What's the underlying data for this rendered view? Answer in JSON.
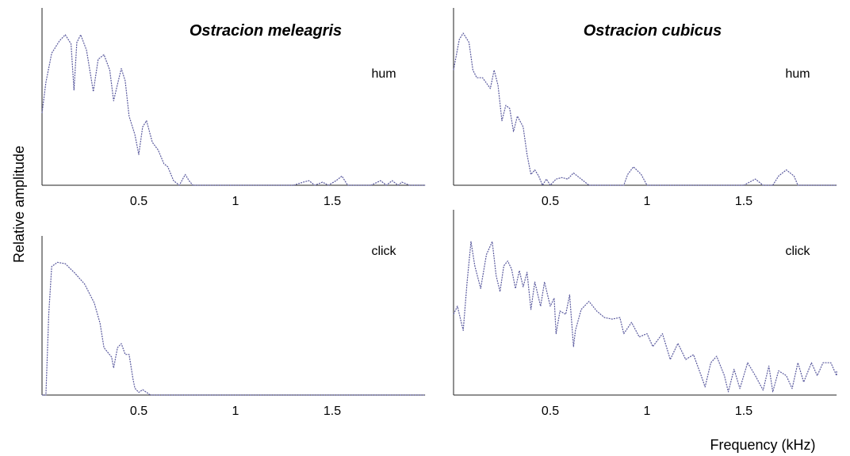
{
  "figure": {
    "ylabel": "Relative amplitude",
    "xlabel": "Frequency (kHz)"
  },
  "chart_data": [
    {
      "type": "line",
      "title": "Ostracion meleagris",
      "label": "hum",
      "xlim": [
        0,
        2
      ],
      "ylim": [
        0,
        1
      ],
      "xticks": [
        0.5,
        1,
        1.5
      ],
      "xticklabels": [
        "0.5",
        "1",
        "1.5"
      ],
      "color": "#5a5a9e",
      "series": [
        {
          "x": [
            0.0,
            0.02,
            0.05,
            0.09,
            0.12,
            0.15,
            0.165,
            0.18,
            0.2,
            0.23,
            0.265,
            0.29,
            0.32,
            0.35,
            0.37,
            0.385,
            0.41,
            0.43,
            0.45,
            0.48,
            0.5,
            0.52,
            0.54,
            0.57,
            0.6,
            0.63,
            0.65,
            0.68,
            0.71,
            0.74,
            0.76,
            0.78,
            0.8,
            1.0,
            1.3,
            1.35,
            1.38,
            1.41,
            1.45,
            1.48,
            1.52,
            1.55,
            1.58,
            1.6,
            1.7,
            1.75,
            1.78,
            1.81,
            1.84,
            1.86,
            1.9,
            2.0
          ],
          "y": [
            0.47,
            0.67,
            0.86,
            0.94,
            0.98,
            0.92,
            0.62,
            0.93,
            0.98,
            0.88,
            0.61,
            0.82,
            0.85,
            0.75,
            0.55,
            0.63,
            0.76,
            0.68,
            0.45,
            0.33,
            0.2,
            0.38,
            0.42,
            0.28,
            0.23,
            0.14,
            0.12,
            0.03,
            0.0,
            0.07,
            0.03,
            0.0,
            0.0,
            0.0,
            0.0,
            0.02,
            0.03,
            0.0,
            0.02,
            0.0,
            0.03,
            0.06,
            0.0,
            0.0,
            0.0,
            0.03,
            0.0,
            0.03,
            0.0,
            0.02,
            0.0,
            0.0
          ]
        }
      ]
    },
    {
      "type": "line",
      "title": "Ostracion cubicus",
      "label": "hum",
      "xlim": [
        0,
        2
      ],
      "ylim": [
        0,
        1
      ],
      "xticks": [
        0.5,
        1,
        1.5
      ],
      "xticklabels": [
        "0.5",
        "1",
        "1.5"
      ],
      "color": "#5a5a9e",
      "series": [
        {
          "x": [
            0.0,
            0.03,
            0.05,
            0.08,
            0.1,
            0.12,
            0.15,
            0.19,
            0.21,
            0.23,
            0.25,
            0.27,
            0.29,
            0.31,
            0.33,
            0.36,
            0.38,
            0.4,
            0.42,
            0.44,
            0.46,
            0.48,
            0.5,
            0.53,
            0.56,
            0.59,
            0.62,
            0.65,
            0.7,
            0.8,
            0.88,
            0.9,
            0.93,
            0.97,
            1.0,
            1.3,
            1.5,
            1.53,
            1.56,
            1.6,
            1.65,
            1.68,
            1.72,
            1.76,
            1.78,
            2.0
          ],
          "y": [
            0.75,
            0.95,
            0.99,
            0.93,
            0.75,
            0.7,
            0.7,
            0.63,
            0.75,
            0.65,
            0.42,
            0.52,
            0.5,
            0.35,
            0.45,
            0.38,
            0.2,
            0.07,
            0.1,
            0.06,
            0.0,
            0.04,
            0.0,
            0.04,
            0.05,
            0.04,
            0.08,
            0.05,
            0.0,
            0.0,
            0.0,
            0.07,
            0.12,
            0.07,
            0.0,
            0.0,
            0.0,
            0.02,
            0.04,
            0.0,
            0.0,
            0.06,
            0.1,
            0.06,
            0.0,
            0.0
          ]
        }
      ]
    },
    {
      "type": "line",
      "title": "",
      "label": "click",
      "xlim": [
        0,
        2
      ],
      "ylim": [
        0,
        1
      ],
      "xticks": [
        0.5,
        1,
        1.5
      ],
      "xticklabels": [
        "0.5",
        "1",
        "1.5"
      ],
      "color": "#5a5a9e",
      "series": [
        {
          "x": [
            0.0,
            0.02,
            0.035,
            0.05,
            0.08,
            0.12,
            0.17,
            0.22,
            0.27,
            0.3,
            0.32,
            0.36,
            0.37,
            0.39,
            0.41,
            0.43,
            0.45,
            0.47,
            0.48,
            0.5,
            0.52,
            0.54,
            0.56,
            0.6,
            2.0
          ],
          "y": [
            0.0,
            0.0,
            0.6,
            0.95,
            0.98,
            0.97,
            0.9,
            0.82,
            0.68,
            0.53,
            0.35,
            0.28,
            0.2,
            0.35,
            0.38,
            0.3,
            0.3,
            0.12,
            0.05,
            0.02,
            0.04,
            0.02,
            0.0,
            0.0,
            0.0
          ]
        }
      ]
    },
    {
      "type": "line",
      "title": "",
      "label": "click",
      "xlim": [
        0,
        2
      ],
      "ylim": [
        0,
        1
      ],
      "xticks": [
        0.5,
        1,
        1.5
      ],
      "xticklabels": [
        "0.5",
        "1",
        "1.5"
      ],
      "color": "#5a5a9e",
      "series": [
        {
          "x": [
            0.0,
            0.02,
            0.05,
            0.07,
            0.09,
            0.11,
            0.14,
            0.17,
            0.2,
            0.22,
            0.24,
            0.26,
            0.28,
            0.3,
            0.32,
            0.34,
            0.36,
            0.38,
            0.4,
            0.42,
            0.43,
            0.45,
            0.47,
            0.5,
            0.52,
            0.53,
            0.55,
            0.58,
            0.6,
            0.62,
            0.63,
            0.66,
            0.7,
            0.74,
            0.78,
            0.82,
            0.86,
            0.88,
            0.92,
            0.96,
            1.0,
            1.03,
            1.08,
            1.12,
            1.16,
            1.2,
            1.24,
            1.28,
            1.3,
            1.33,
            1.36,
            1.4,
            1.42,
            1.45,
            1.48,
            1.52,
            1.56,
            1.6,
            1.63,
            1.65,
            1.68,
            1.72,
            1.75,
            1.78,
            1.81,
            1.85,
            1.88,
            1.91,
            1.95,
            1.98,
            2.0
          ],
          "y": [
            0.5,
            0.55,
            0.4,
            0.7,
            0.95,
            0.8,
            0.66,
            0.87,
            0.95,
            0.74,
            0.64,
            0.8,
            0.83,
            0.78,
            0.66,
            0.77,
            0.67,
            0.76,
            0.53,
            0.7,
            0.65,
            0.55,
            0.7,
            0.55,
            0.6,
            0.38,
            0.52,
            0.5,
            0.62,
            0.3,
            0.4,
            0.53,
            0.58,
            0.52,
            0.48,
            0.47,
            0.48,
            0.38,
            0.45,
            0.36,
            0.38,
            0.3,
            0.38,
            0.22,
            0.32,
            0.22,
            0.25,
            0.12,
            0.05,
            0.2,
            0.24,
            0.12,
            0.02,
            0.16,
            0.04,
            0.2,
            0.12,
            0.03,
            0.18,
            0.02,
            0.15,
            0.12,
            0.04,
            0.2,
            0.08,
            0.2,
            0.12,
            0.2,
            0.2,
            0.12,
            0.15
          ]
        }
      ]
    }
  ]
}
